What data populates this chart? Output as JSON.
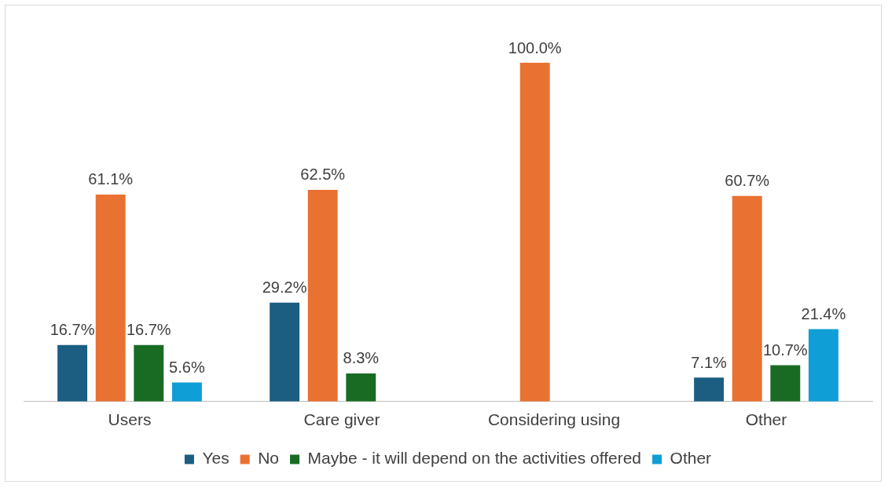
{
  "chart_data": {
    "type": "bar",
    "categories": [
      "Users",
      "Care giver",
      "Considering using",
      "Other"
    ],
    "series": [
      {
        "name": "Yes",
        "color": "#1b5e82",
        "values": [
          16.7,
          29.2,
          null,
          7.1
        ],
        "value_labels": [
          "16.7%",
          "29.2%",
          null,
          "7.1%"
        ]
      },
      {
        "name": "No",
        "color": "#e97132",
        "values": [
          61.1,
          62.5,
          100.0,
          60.7
        ],
        "value_labels": [
          "61.1%",
          "62.5%",
          "100.0%",
          "60.7%"
        ]
      },
      {
        "name": "Maybe - it will depend on the activities offered",
        "color": "#196b24",
        "values": [
          16.7,
          8.3,
          null,
          10.7
        ],
        "value_labels": [
          "16.7%",
          "8.3%",
          null,
          "10.7%"
        ]
      },
      {
        "name": "Other",
        "color": "#0f9ed5",
        "values": [
          5.6,
          null,
          null,
          21.4
        ],
        "value_labels": [
          "5.6%",
          null,
          null,
          "21.4%"
        ]
      }
    ],
    "legend": "bottom",
    "grid": false
  }
}
